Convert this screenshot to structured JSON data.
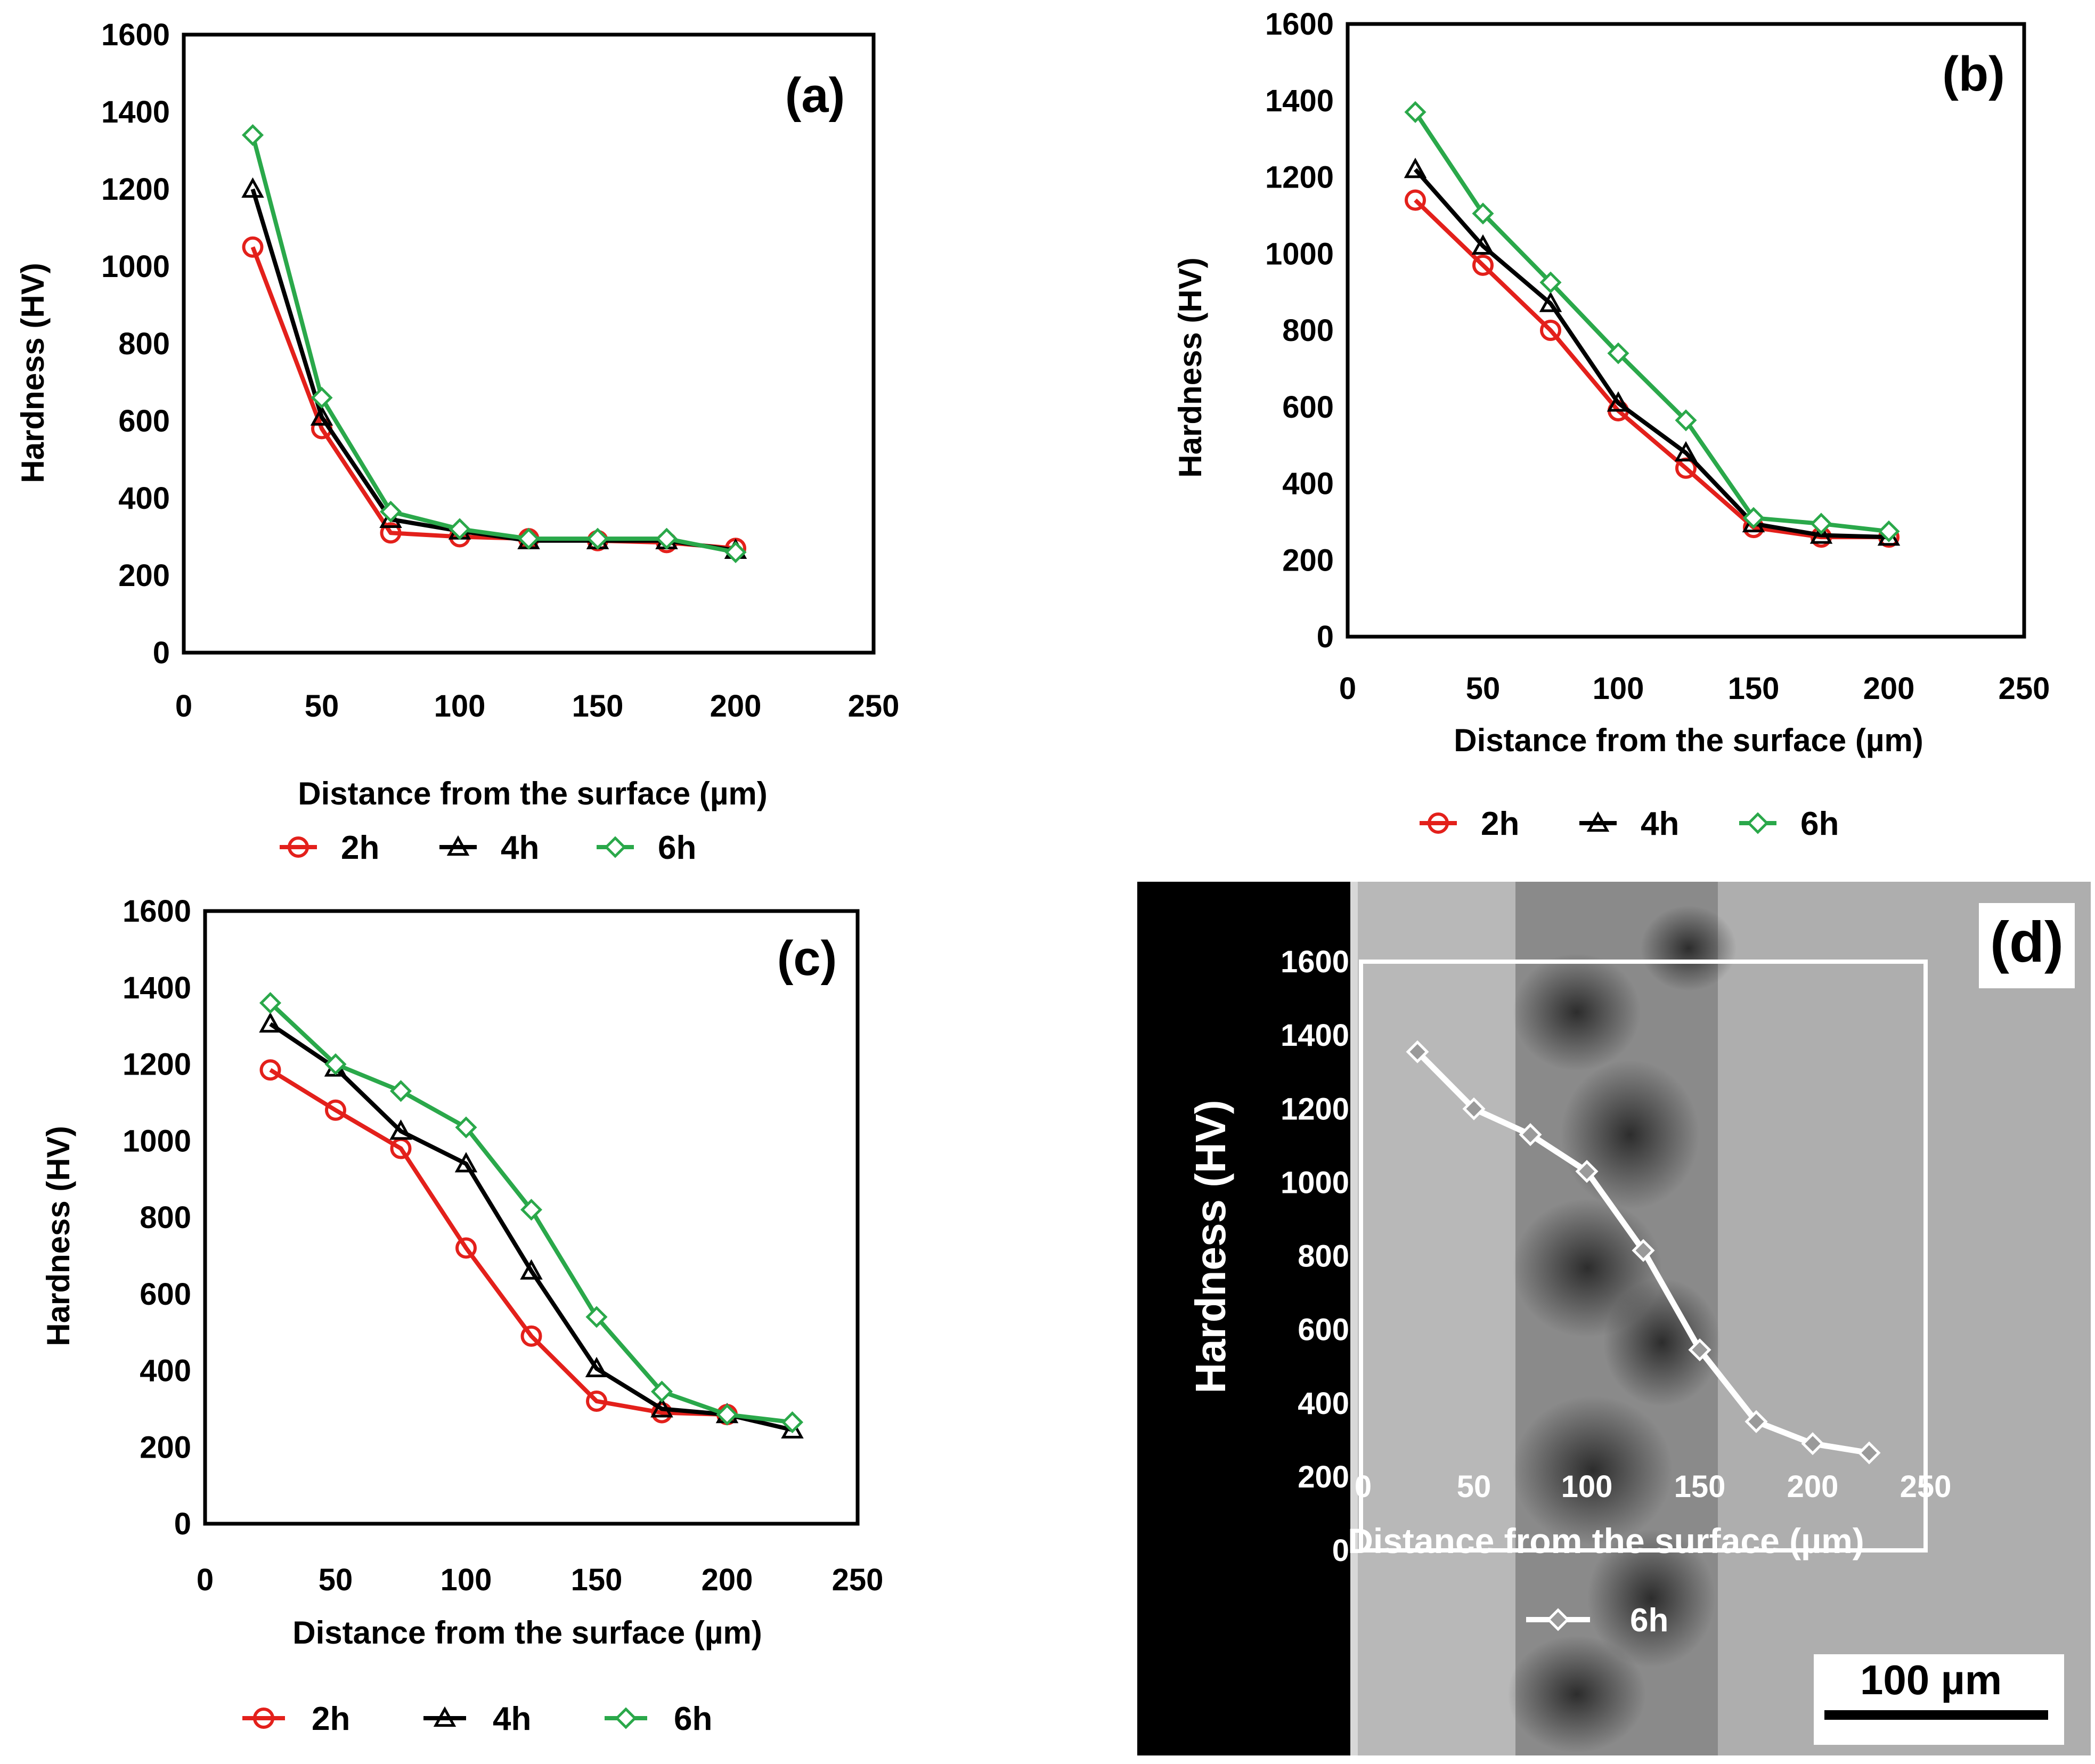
{
  "colors": {
    "2h": "#e3201b",
    "4h": "#000000",
    "6h": "#2aa84a",
    "overlay": "#ffffff"
  },
  "chart_data": [
    {
      "panel": "(a)",
      "type": "line",
      "xlabel": "Distance from the surface (µm)",
      "ylabel": "Hardness (HV)",
      "xlim": [
        0,
        250
      ],
      "ylim": [
        0,
        1600
      ],
      "xticks": [
        "0",
        "50",
        "100",
        "150",
        "200",
        "250"
      ],
      "yticks": [
        "0",
        "200",
        "400",
        "600",
        "800",
        "1000",
        "1200",
        "1400",
        "1600"
      ],
      "legend": "bottom",
      "series": [
        {
          "name": "2h",
          "marker": "circle",
          "x": [
            25,
            50,
            75,
            100,
            125,
            150,
            175,
            200
          ],
          "y": [
            1050,
            580,
            310,
            300,
            295,
            290,
            285,
            270
          ]
        },
        {
          "name": "4h",
          "marker": "triangle",
          "x": [
            25,
            50,
            75,
            100,
            125,
            150,
            175,
            200
          ],
          "y": [
            1200,
            610,
            345,
            315,
            290,
            290,
            290,
            265
          ]
        },
        {
          "name": "6h",
          "marker": "diamond",
          "x": [
            25,
            50,
            75,
            100,
            125,
            150,
            175,
            200
          ],
          "y": [
            1340,
            660,
            365,
            320,
            295,
            295,
            295,
            260
          ]
        }
      ]
    },
    {
      "panel": "(b)",
      "type": "line",
      "xlabel": "Distance from the surface (µm)",
      "ylabel": "Hardness (HV)",
      "xlim": [
        0,
        250
      ],
      "ylim": [
        0,
        1600
      ],
      "xticks": [
        "0",
        "50",
        "100",
        "150",
        "200",
        "250"
      ],
      "yticks": [
        "0",
        "200",
        "400",
        "600",
        "800",
        "1000",
        "1200",
        "1400",
        "1600"
      ],
      "legend": "bottom",
      "series": [
        {
          "name": "2h",
          "marker": "circle",
          "x": [
            25,
            50,
            75,
            100,
            125,
            150,
            175,
            200
          ],
          "y": [
            1140,
            970,
            800,
            590,
            440,
            285,
            260,
            260
          ]
        },
        {
          "name": "4h",
          "marker": "triangle",
          "x": [
            25,
            50,
            75,
            100,
            125,
            150,
            175,
            200
          ],
          "y": [
            1220,
            1020,
            870,
            610,
            480,
            295,
            265,
            260
          ]
        },
        {
          "name": "6h",
          "marker": "diamond",
          "x": [
            25,
            50,
            75,
            100,
            125,
            150,
            175,
            200
          ],
          "y": [
            1370,
            1105,
            925,
            740,
            565,
            310,
            295,
            275
          ]
        }
      ]
    },
    {
      "panel": "(c)",
      "type": "line",
      "xlabel": "Distance from the surface (µm)",
      "ylabel": "Hardness (HV)",
      "xlim": [
        0,
        250
      ],
      "ylim": [
        0,
        1600
      ],
      "xticks": [
        "0",
        "50",
        "100",
        "150",
        "200",
        "250"
      ],
      "yticks": [
        "0",
        "200",
        "400",
        "600",
        "800",
        "1000",
        "1200",
        "1400",
        "1600"
      ],
      "legend": "bottom",
      "series": [
        {
          "name": "2h",
          "marker": "circle",
          "x": [
            25,
            50,
            75,
            100,
            125,
            150,
            175,
            200
          ],
          "y": [
            1185,
            1080,
            980,
            720,
            490,
            320,
            290,
            285
          ]
        },
        {
          "name": "4h",
          "marker": "triangle",
          "x": [
            25,
            50,
            75,
            100,
            125,
            150,
            175,
            200,
            225
          ],
          "y": [
            1305,
            1190,
            1025,
            940,
            660,
            405,
            300,
            285,
            245
          ]
        },
        {
          "name": "6h",
          "marker": "diamond",
          "x": [
            25,
            50,
            75,
            100,
            125,
            150,
            175,
            200,
            225
          ],
          "y": [
            1360,
            1200,
            1130,
            1035,
            820,
            540,
            345,
            285,
            265
          ]
        }
      ]
    },
    {
      "panel": "(d)",
      "type": "line",
      "xlabel": "Distance from the surface (µm)",
      "ylabel": "Hardness (HV)",
      "xlim": [
        0,
        250
      ],
      "ylim": [
        0,
        1600
      ],
      "xticks": [
        "0",
        "50",
        "100",
        "150",
        "200",
        "250"
      ],
      "yticks": [
        "0",
        "200",
        "400",
        "600",
        "800",
        "1000",
        "1200",
        "1400",
        "1600"
      ],
      "legend": "bottom",
      "scale_bar": "100 µm",
      "series": [
        {
          "name": "6h",
          "marker": "diamond",
          "x": [
            25,
            50,
            75,
            100,
            125,
            150,
            175,
            200,
            225
          ],
          "y": [
            1355,
            1200,
            1130,
            1030,
            815,
            545,
            350,
            290,
            265
          ]
        }
      ]
    }
  ]
}
